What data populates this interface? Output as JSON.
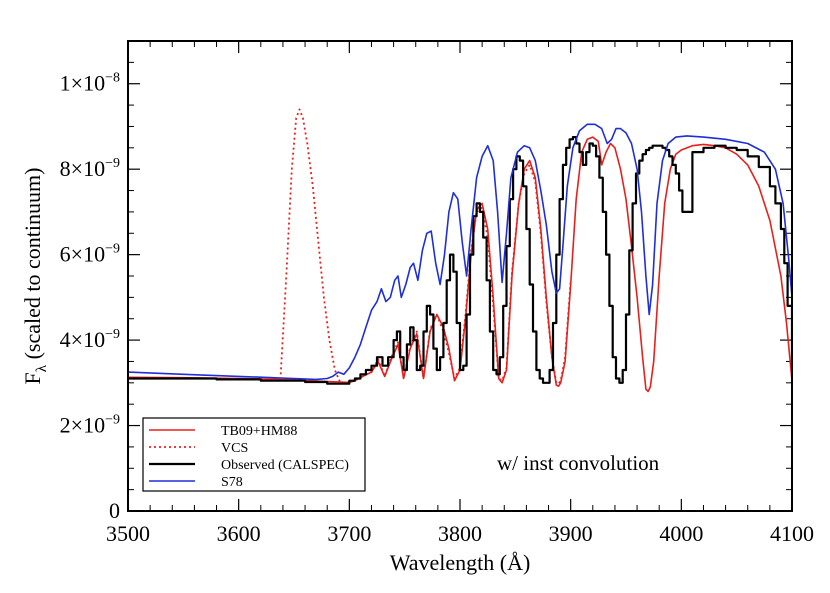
{
  "chart_data": {
    "type": "line",
    "title": "",
    "xlabel": "Wavelength (Å)",
    "ylabel": {
      "base": "F",
      "subscript": "λ",
      "rest": " (scaled to continuum)"
    },
    "xlim": [
      3500,
      4100
    ],
    "ylim": [
      0,
      1.1e-08
    ],
    "x_ticks": [
      3500,
      3600,
      3700,
      3800,
      3900,
      4000,
      4100
    ],
    "y_ticks": [
      {
        "value": 0,
        "mant": "0",
        "exp": ""
      },
      {
        "value": 2e-09,
        "mant": "2×10",
        "exp": "−9"
      },
      {
        "value": 4e-09,
        "mant": "4×10",
        "exp": "−9"
      },
      {
        "value": 6e-09,
        "mant": "6×10",
        "exp": "−9"
      },
      {
        "value": 8e-09,
        "mant": "8×10",
        "exp": "−9"
      },
      {
        "value": 1e-08,
        "mant": "1×10",
        "exp": "−8"
      }
    ],
    "grid": false,
    "legend_position": "bottom-left",
    "annotation": "w/ inst convolution",
    "series": [
      {
        "name": "TB09+HM88",
        "color": "#e8201c",
        "style": "solid",
        "x": [
          3500,
          3550,
          3600,
          3650,
          3680,
          3700,
          3705,
          3712,
          3720,
          3726,
          3732,
          3738,
          3744,
          3749,
          3755,
          3761,
          3767,
          3773,
          3779,
          3785,
          3790,
          3795,
          3800,
          3805,
          3810,
          3815,
          3820,
          3825,
          3830,
          3835,
          3838,
          3842,
          3847,
          3853,
          3858,
          3863,
          3868,
          3873,
          3878,
          3883,
          3887,
          3889,
          3891,
          3895,
          3900,
          3905,
          3910,
          3915,
          3920,
          3925,
          3928,
          3932,
          3936,
          3940,
          3945,
          3950,
          3955,
          3960,
          3965,
          3968,
          3970,
          3972,
          3975,
          3980,
          3985,
          3990,
          3995,
          4000,
          4010,
          4020,
          4030,
          4040,
          4050,
          4060,
          4070,
          4080,
          4090,
          4095,
          4100
        ],
        "y": [
          3.13e-09,
          3.12e-09,
          3.1e-09,
          3.07e-09,
          3.03e-09,
          3.01e-09,
          3.05e-09,
          3.15e-09,
          3.25e-09,
          3.5e-09,
          3.15e-09,
          3.55e-09,
          3.9e-09,
          3.1e-09,
          3.8e-09,
          4.15e-09,
          3.1e-09,
          4.2e-09,
          4.6e-09,
          4.3e-09,
          3.8e-09,
          3.05e-09,
          3.3e-09,
          4.5e-09,
          6e-09,
          7.05e-09,
          7.2e-09,
          6.6e-09,
          5e-09,
          3.1e-09,
          3e-09,
          3.3e-09,
          5.5e-09,
          7.2e-09,
          8e-09,
          8.2e-09,
          7.8e-09,
          6.6e-09,
          5e-09,
          3.6e-09,
          2.95e-09,
          2.92e-09,
          3e-09,
          3.5e-09,
          5.3e-09,
          7.3e-09,
          8.4e-09,
          8.7e-09,
          8.75e-09,
          8.65e-09,
          8.1e-09,
          8.4e-09,
          8.6e-09,
          8.5e-09,
          8e-09,
          7.3e-09,
          6.2e-09,
          5e-09,
          3.6e-09,
          2.85e-09,
          2.8e-09,
          2.9e-09,
          3.5e-09,
          5.5e-09,
          7.2e-09,
          8e-09,
          8.35e-09,
          8.45e-09,
          8.55e-09,
          8.58e-09,
          8.55e-09,
          8.5e-09,
          8.35e-09,
          8.1e-09,
          7.6e-09,
          6.8e-09,
          5.5e-09,
          4.4e-09,
          3.05e-09
        ]
      },
      {
        "name": "VCS",
        "color": "#e8201c",
        "style": "dotted",
        "x": [
          3638,
          3643,
          3648,
          3652,
          3655,
          3658,
          3662,
          3667,
          3672,
          3677,
          3682,
          3687,
          3691,
          3694,
          3700,
          3705,
          3712,
          3720,
          3726,
          3732,
          3738,
          3744,
          3749,
          3755,
          3761,
          3767,
          3773,
          3779,
          3785,
          3790,
          3795,
          3800,
          3805,
          3810,
          3815,
          3820,
          3825,
          3830,
          3835,
          3838,
          3842,
          3847,
          3853,
          3858,
          3863,
          3868,
          3873,
          3878,
          3883,
          3887,
          3889,
          3891,
          3895,
          3900
        ],
        "y": [
          3.2e-09,
          5.5e-09,
          8e-09,
          9.2e-09,
          9.4e-09,
          9.2e-09,
          8.6e-09,
          7.6e-09,
          6.3e-09,
          5e-09,
          4e-09,
          3.3e-09,
          3.05e-09,
          3e-09,
          3.02e-09,
          3.05e-09,
          3.15e-09,
          3.25e-09,
          3.55e-09,
          3.15e-09,
          3.6e-09,
          3.95e-09,
          3.1e-09,
          3.85e-09,
          4.2e-09,
          3.1e-09,
          4.25e-09,
          4.6e-09,
          4.2e-09,
          3.7e-09,
          3.1e-09,
          3.35e-09,
          4.6e-09,
          6.1e-09,
          7e-09,
          7.1e-09,
          6.4e-09,
          4.8e-09,
          3.1e-09,
          3.05e-09,
          3.35e-09,
          5.6e-09,
          7.2e-09,
          7.9e-09,
          8.1e-09,
          7.7e-09,
          6.5e-09,
          4.9e-09,
          3.6e-09,
          3e-09,
          2.98e-09,
          3.05e-09,
          3.6e-09,
          5.4e-09
        ]
      },
      {
        "name": "Observed (CALSPEC)",
        "color": "#000000",
        "style": "step",
        "x": [
          3500,
          3540,
          3580,
          3620,
          3660,
          3680,
          3690,
          3700,
          3705,
          3710,
          3715,
          3720,
          3725,
          3730,
          3735,
          3740,
          3743,
          3746,
          3749,
          3752,
          3755,
          3758,
          3761,
          3764,
          3767,
          3770,
          3773,
          3776,
          3779,
          3782,
          3785,
          3788,
          3791,
          3794,
          3797,
          3800,
          3803,
          3806,
          3809,
          3812,
          3815,
          3818,
          3821,
          3824,
          3827,
          3830,
          3833,
          3836,
          3839,
          3842,
          3845,
          3848,
          3851,
          3854,
          3857,
          3860,
          3863,
          3866,
          3869,
          3872,
          3875,
          3878,
          3881,
          3884,
          3887,
          3890,
          3893,
          3896,
          3899,
          3902,
          3905,
          3908,
          3911,
          3914,
          3917,
          3920,
          3923,
          3926,
          3929,
          3932,
          3935,
          3938,
          3941,
          3944,
          3947,
          3950,
          3953,
          3956,
          3959,
          3962,
          3965,
          3968,
          3971,
          3974,
          3977,
          3980,
          3983,
          3986,
          3989,
          3992,
          3995,
          3998,
          4001,
          4010,
          4020,
          4030,
          4040,
          4050,
          4060,
          4070,
          4080,
          4085,
          4090,
          4093,
          4096,
          4100
        ],
        "y": [
          3.1e-09,
          3.1e-09,
          3.08e-09,
          3.05e-09,
          3.02e-09,
          2.98e-09,
          2.98e-09,
          3.05e-09,
          3.1e-09,
          3.2e-09,
          3.3e-09,
          3.4e-09,
          3.6e-09,
          3.4e-09,
          3.6e-09,
          4e-09,
          4.2e-09,
          3.6e-09,
          3.3e-09,
          3.9e-09,
          4.3e-09,
          4e-09,
          3.3e-09,
          3.4e-09,
          4.2e-09,
          4.8e-09,
          4.6e-09,
          3.8e-09,
          3.3e-09,
          3.6e-09,
          4.4e-09,
          5.4e-09,
          6e-09,
          5.6e-09,
          4.4e-09,
          3.3e-09,
          3.4e-09,
          4.6e-09,
          6e-09,
          6.9e-09,
          7.2e-09,
          7e-09,
          6.4e-09,
          5.4e-09,
          4.2e-09,
          3.3e-09,
          3.2e-09,
          3.6e-09,
          4.8e-09,
          6.2e-09,
          7.3e-09,
          8e-09,
          8.3e-09,
          8.2e-09,
          7.6e-09,
          6.6e-09,
          5.3e-09,
          4.2e-09,
          3.3e-09,
          3.1e-09,
          3e-09,
          3e-09,
          3.3e-09,
          4.4e-09,
          6e-09,
          7.3e-09,
          8.1e-09,
          8.5e-09,
          8.7e-09,
          8.75e-09,
          8.6e-09,
          8.4e-09,
          8.1e-09,
          8.4e-09,
          8.6e-09,
          8.55e-09,
          8.3e-09,
          7.8e-09,
          7e-09,
          6e-09,
          4.8e-09,
          3.6e-09,
          3.1e-09,
          3e-09,
          3.3e-09,
          4.6e-09,
          6.1e-09,
          7.2e-09,
          7.9e-09,
          8.2e-09,
          8.35e-09,
          8.45e-09,
          8.5e-09,
          8.55e-09,
          8.55e-09,
          8.55e-09,
          8.5e-09,
          8.45e-09,
          8.3e-09,
          8.1e-09,
          7.9e-09,
          7.5e-09,
          7e-09,
          8.4e-09,
          8.5e-09,
          8.55e-09,
          8.5e-09,
          8.45e-09,
          8.3e-09,
          8.05e-09,
          7.6e-09,
          7.2e-09,
          6.6e-09,
          5.8e-09,
          4.8e-09,
          3.3e-09
        ]
      },
      {
        "name": "S78",
        "color": "#1f2fd8",
        "style": "solid",
        "x": [
          3500,
          3550,
          3600,
          3650,
          3670,
          3680,
          3685,
          3690,
          3695,
          3700,
          3705,
          3710,
          3715,
          3720,
          3725,
          3729,
          3733,
          3737,
          3741,
          3744,
          3747,
          3751,
          3755,
          3758,
          3762,
          3766,
          3770,
          3774,
          3778,
          3782,
          3786,
          3790,
          3794,
          3798,
          3802,
          3806,
          3810,
          3815,
          3820,
          3825,
          3830,
          3834,
          3838,
          3842,
          3846,
          3852,
          3858,
          3863,
          3868,
          3873,
          3878,
          3883,
          3887,
          3890,
          3893,
          3897,
          3902,
          3908,
          3915,
          3922,
          3928,
          3933,
          3937,
          3941,
          3945,
          3950,
          3955,
          3960,
          3964,
          3968,
          3971,
          3974,
          3978,
          3983,
          3988,
          3995,
          4005,
          4020,
          4040,
          4060,
          4075,
          4085,
          4092,
          4097,
          4100
        ],
        "y": [
          3.25e-09,
          3.2e-09,
          3.15e-09,
          3.1e-09,
          3.08e-09,
          3.1e-09,
          3.15e-09,
          3.25e-09,
          3.2e-09,
          3.35e-09,
          3.6e-09,
          3.9e-09,
          4.3e-09,
          4.7e-09,
          4.9e-09,
          5.2e-09,
          4.9e-09,
          5e-09,
          5.4e-09,
          5.5e-09,
          5e-09,
          5.3e-09,
          5.7e-09,
          5.8e-09,
          5.4e-09,
          6.1e-09,
          6.5e-09,
          6.55e-09,
          5.8e-09,
          5.3e-09,
          6e-09,
          7e-09,
          7.45e-09,
          7.3e-09,
          6.3e-09,
          5.5e-09,
          6.6e-09,
          7.8e-09,
          8.3e-09,
          8.55e-09,
          8.2e-09,
          7e-09,
          5.35e-09,
          6.5e-09,
          7.8e-09,
          8.4e-09,
          8.55e-09,
          8.5e-09,
          8.2e-09,
          7.5e-09,
          6.7e-09,
          5.6e-09,
          5.1e-09,
          5.2e-09,
          6.2e-09,
          7.6e-09,
          8.5e-09,
          8.9e-09,
          9.05e-09,
          9.05e-09,
          8.95e-09,
          8.6e-09,
          8.7e-09,
          8.95e-09,
          8.95e-09,
          8.85e-09,
          8.6e-09,
          8e-09,
          7e-09,
          5.5e-09,
          4.6e-09,
          5.3e-09,
          7.2e-09,
          8.2e-09,
          8.6e-09,
          8.75e-09,
          8.78e-09,
          8.75e-09,
          8.7e-09,
          8.6e-09,
          8.4e-09,
          8e-09,
          7.2e-09,
          5.9e-09,
          5e-09
        ]
      }
    ]
  }
}
